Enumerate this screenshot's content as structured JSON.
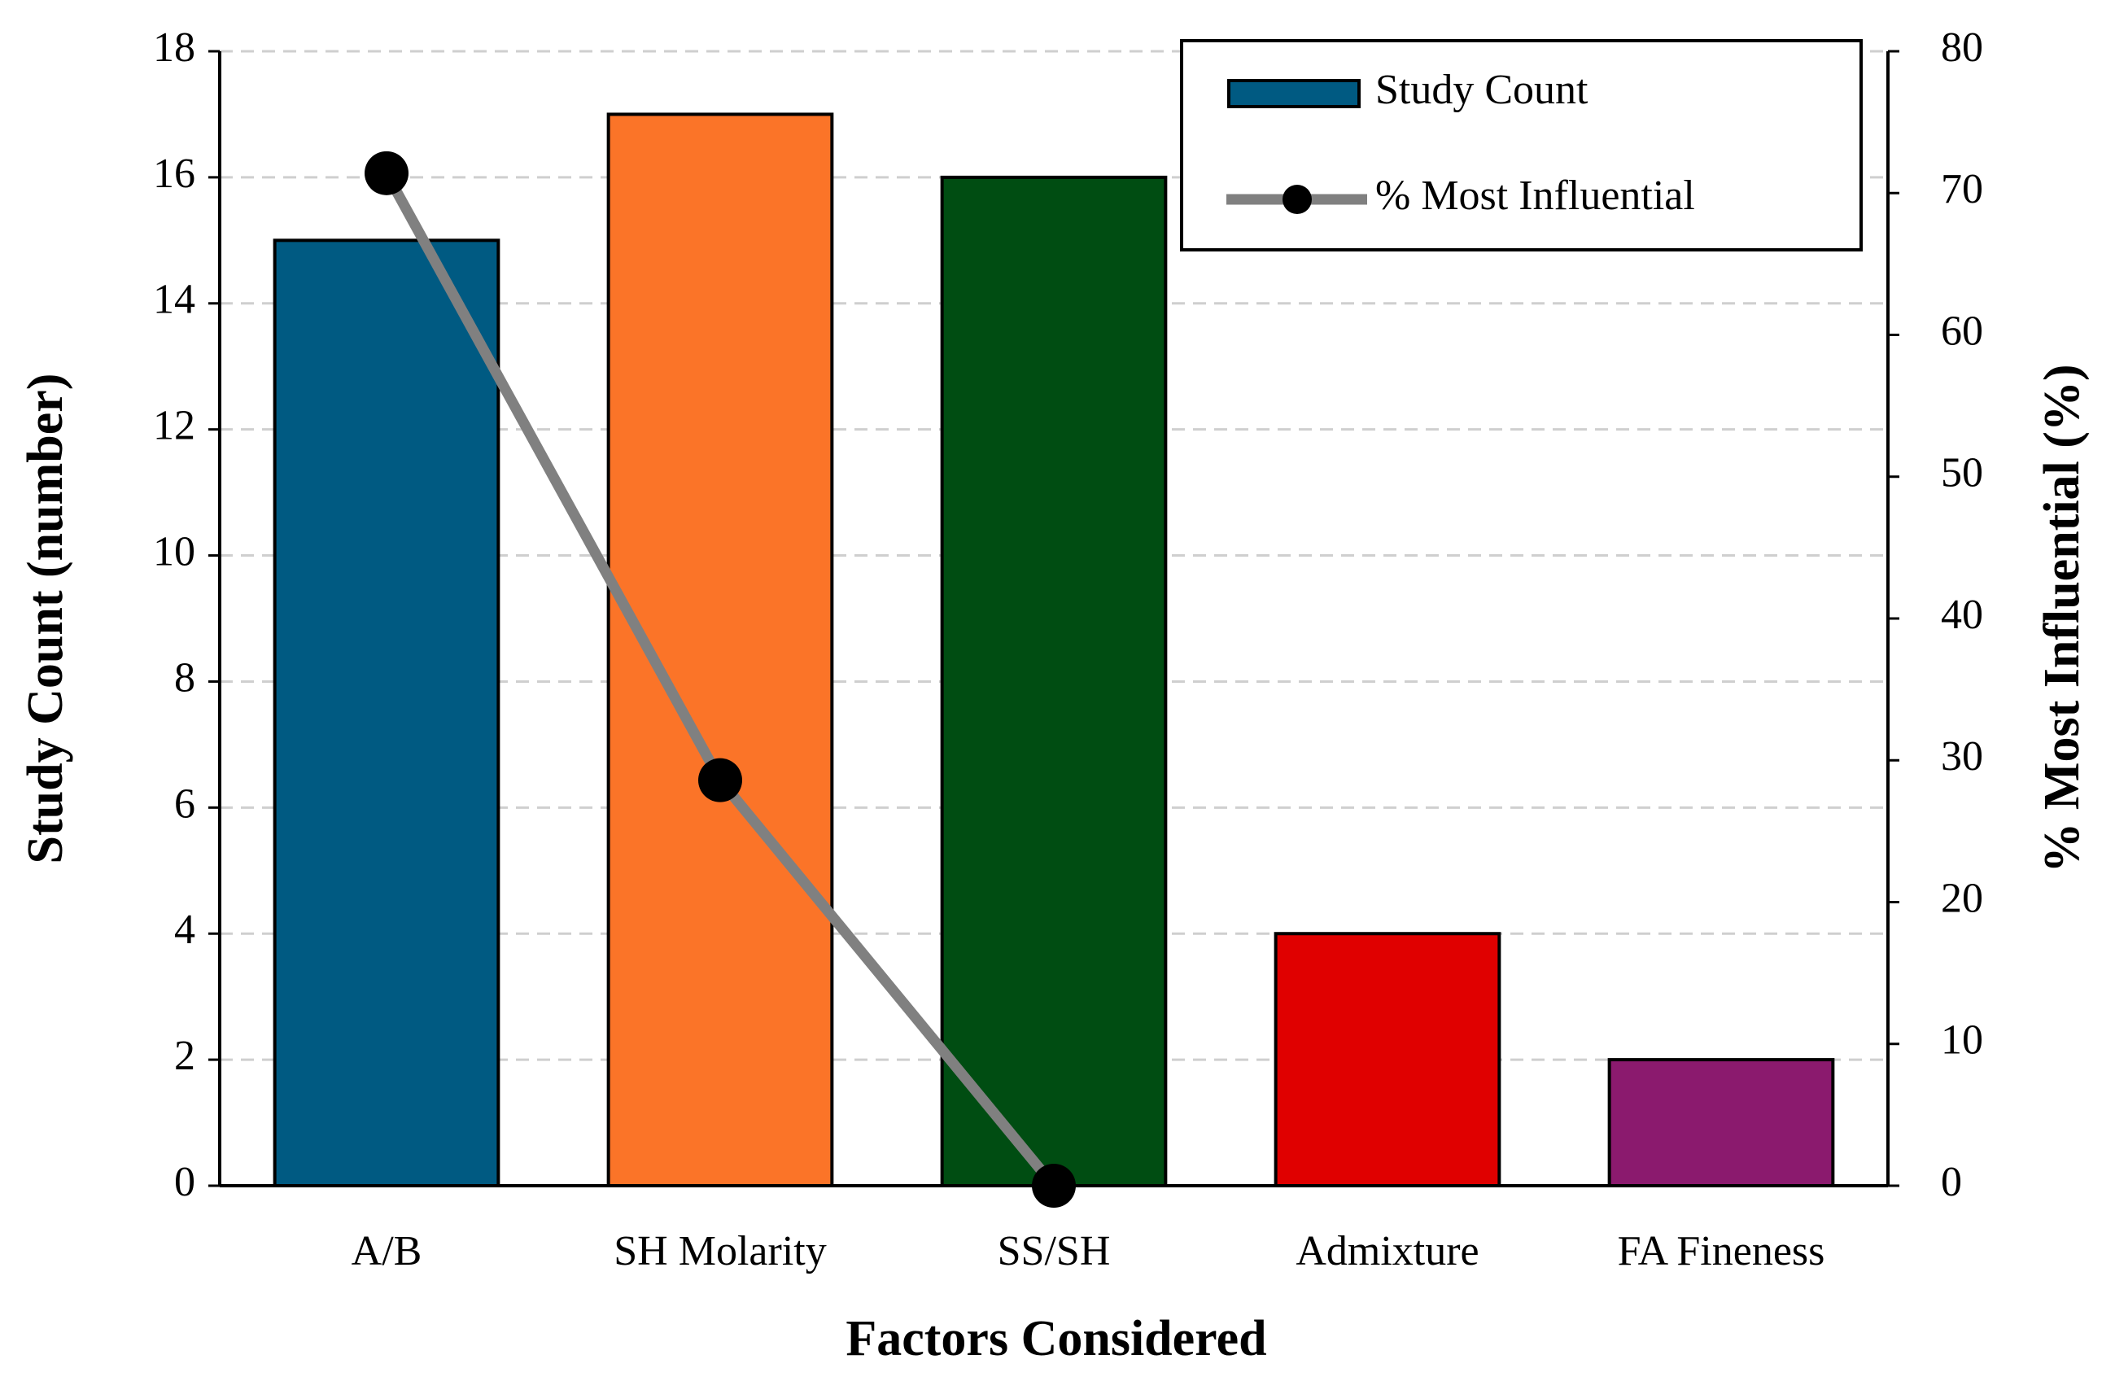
{
  "chart_data": {
    "type": "bar",
    "categories": [
      "A/B",
      "SH Molarity",
      "SS/SH",
      "Admixture",
      "FA Fineness"
    ],
    "series": [
      {
        "name": "Study Count",
        "type": "bar",
        "color": "#005a82",
        "colors": [
          "#005a82",
          "#fb7428",
          "#004d12",
          "#e00000",
          "#8b1a6e"
        ],
        "values": [
          15,
          17,
          16,
          4,
          2
        ]
      },
      {
        "name": "% Most Influential",
        "type": "line",
        "axis": "y2",
        "color": "#808080",
        "marker_color": "#000000",
        "values": [
          71.4,
          28.6,
          0,
          null,
          null
        ]
      }
    ],
    "xlabel": "Factors Considered",
    "ylabel": "Study Count (number)",
    "y2label": "% Most Influential (%)",
    "ylim": [
      0,
      18
    ],
    "yticks": [
      0,
      2,
      4,
      6,
      8,
      10,
      12,
      14,
      16,
      18
    ],
    "y2lim": [
      0,
      80
    ],
    "y2ticks": [
      0,
      10,
      20,
      30,
      40,
      50,
      60,
      70,
      80
    ],
    "grid": true,
    "legend": "upper right"
  }
}
